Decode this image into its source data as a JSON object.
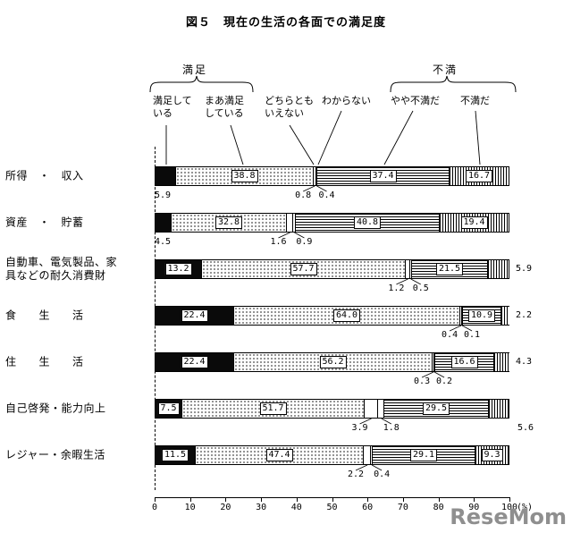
{
  "title": "図５　現在の生活の各面での満足度",
  "watermark": "ReseMom",
  "legend": {
    "group_satisfied": "満足",
    "group_dissatisfied": "不満",
    "items": [
      {
        "label": "満足して\nいる",
        "pattern": "solid-black"
      },
      {
        "label": "まあ満足\nしている",
        "pattern": "dots"
      },
      {
        "label": "どちらとも\nいえない",
        "pattern": "white"
      },
      {
        "label": "わからない",
        "pattern": "white"
      },
      {
        "label": "やや不満だ",
        "pattern": "horizontal-lines"
      },
      {
        "label": "不満だ",
        "pattern": "vertical-lines"
      }
    ]
  },
  "chart_data": {
    "type": "bar",
    "stacked": true,
    "orientation": "horizontal",
    "title": "図５　現在の生活の各面での満足度",
    "xlim": [
      0,
      100
    ],
    "x_ticks": [
      0,
      10,
      20,
      30,
      40,
      50,
      60,
      70,
      80,
      90,
      100
    ],
    "x_unit": "(%)",
    "series_names": [
      "満足している",
      "まあ満足している",
      "どちらともいえない",
      "わからない",
      "やや不満だ",
      "不満だ"
    ],
    "rows": [
      {
        "category": "所得　・　収入",
        "values": [
          5.9,
          38.8,
          0.8,
          0.4,
          37.4,
          16.7
        ],
        "placements": [
          "below-left",
          "in",
          "below",
          "below",
          "in",
          "in"
        ]
      },
      {
        "category": "資産　・　貯蓄",
        "values": [
          4.5,
          32.8,
          1.6,
          0.9,
          40.8,
          19.4
        ],
        "placements": [
          "below-left",
          "in",
          "below",
          "below",
          "in",
          "in"
        ]
      },
      {
        "category": "自動車、電気製品、家\n具などの耐久消費財",
        "values": [
          13.2,
          57.7,
          1.2,
          0.5,
          21.5,
          5.9
        ],
        "placements": [
          "in",
          "in",
          "below",
          "below",
          "in",
          "right"
        ]
      },
      {
        "category": "食　　生　　活",
        "values": [
          22.4,
          64.0,
          0.4,
          0.1,
          10.9,
          2.2
        ],
        "placements": [
          "in",
          "in",
          "below",
          "below",
          "in",
          "right"
        ]
      },
      {
        "category": "住　　生　　活",
        "values": [
          22.4,
          56.2,
          0.3,
          0.2,
          16.6,
          4.3
        ],
        "placements": [
          "in",
          "in",
          "below",
          "below",
          "in",
          "right"
        ]
      },
      {
        "category": "自己啓発・能力向上",
        "values": [
          7.5,
          51.7,
          3.9,
          1.8,
          29.5,
          5.6
        ],
        "placements": [
          "in",
          "in",
          "below",
          "below",
          "in",
          "below-right"
        ]
      },
      {
        "category": "レジャー・余暇生活",
        "values": [
          11.5,
          47.4,
          2.2,
          0.4,
          29.1,
          9.3
        ],
        "placements": [
          "in",
          "in",
          "below",
          "below",
          "in",
          "in"
        ]
      }
    ]
  }
}
